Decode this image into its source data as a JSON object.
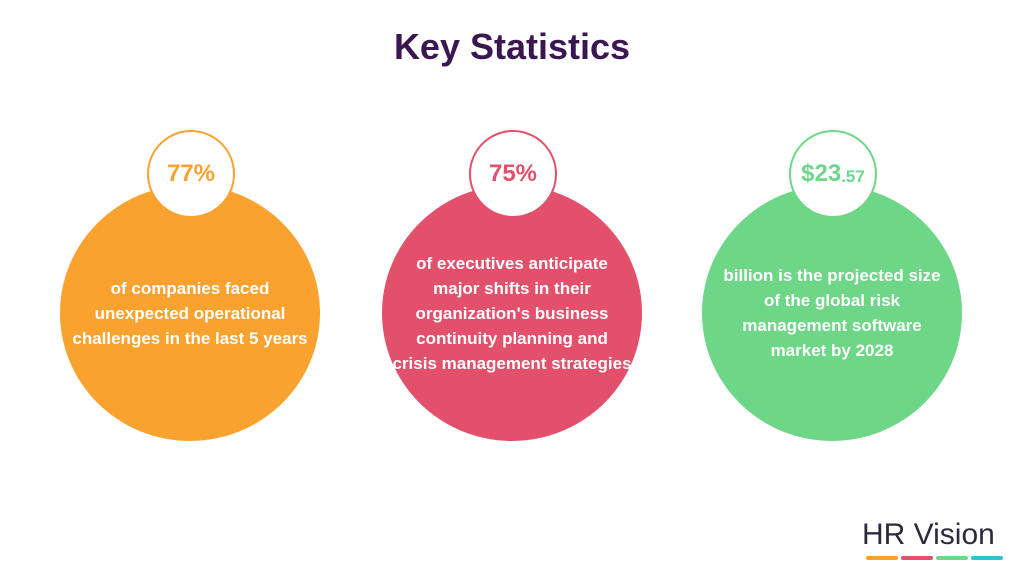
{
  "title": "Key Statistics",
  "stats": [
    {
      "value": "77%",
      "description": "of companies faced unexpected operational challenges in the last 5 years"
    },
    {
      "value": "75%",
      "description": "of executives anticipate major shifts in their organization's business continuity planning and crisis management strategies"
    },
    {
      "value": "$23",
      "value_suffix": ".57",
      "description": "billion is the projected size of the global risk management software market by 2028"
    }
  ],
  "logo": "HR Vision"
}
